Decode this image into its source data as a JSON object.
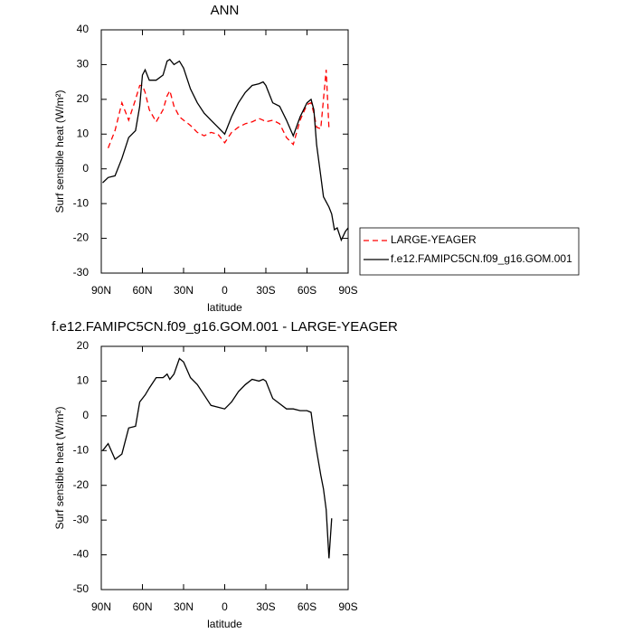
{
  "chart_data": [
    {
      "type": "line",
      "title": "ANN",
      "x_label": "latitude",
      "y_label": "Surf sensible heat (W/m²)",
      "xlim": [
        90,
        -90
      ],
      "xticks": [
        {
          "value": 90,
          "label": "90N"
        },
        {
          "value": 60,
          "label": "60N"
        },
        {
          "value": 30,
          "label": "30N"
        },
        0,
        {
          "value": -30,
          "label": "30S"
        },
        {
          "value": -60,
          "label": "60S"
        },
        {
          "value": -90,
          "label": "90S"
        }
      ],
      "ylim": [
        -30,
        40
      ],
      "yticks": [
        -30,
        -20,
        -10,
        0,
        10,
        20,
        30,
        40
      ],
      "legend": "right",
      "x": [
        89,
        85,
        80,
        75,
        70,
        65,
        62,
        60,
        58,
        55,
        50,
        45,
        42,
        40,
        37,
        33,
        30,
        25,
        20,
        15,
        10,
        5,
        0,
        -5,
        -10,
        -15,
        -20,
        -25,
        -28,
        -30,
        -35,
        -40,
        -45,
        -50,
        -55,
        -60,
        -63,
        -65,
        -67,
        -70,
        -72,
        -74,
        -76,
        -78,
        -80,
        -82,
        -85,
        -88,
        -90
      ],
      "series": [
        {
          "name": "LARGE-YEAGER",
          "color": "#ff0000",
          "line_style": "dashed",
          "values": [
            null,
            6,
            11,
            19,
            14,
            20,
            24,
            24,
            22,
            17,
            13.5,
            17,
            21,
            22.5,
            18,
            15,
            14,
            12.5,
            10.5,
            9.5,
            10.5,
            10,
            7.5,
            10.5,
            12,
            13,
            13.5,
            14.5,
            14,
            13.5,
            14,
            13,
            9,
            7,
            14,
            18.5,
            19,
            16,
            12,
            11.5,
            20,
            28.5,
            11.5,
            null,
            null,
            null,
            null,
            null,
            null
          ]
        },
        {
          "name": "f.e12.FAMIPC5CN.f09_g16.GOM.001",
          "color": "#000000",
          "line_style": "solid",
          "values": [
            -4,
            -2.5,
            -2,
            3,
            9,
            11,
            18,
            27,
            28.5,
            25.5,
            25.5,
            27,
            31,
            31.5,
            30,
            31,
            29,
            23,
            19,
            16,
            14,
            12,
            10,
            15,
            19,
            22,
            24,
            24.5,
            25,
            24,
            19,
            18,
            14,
            9.5,
            15,
            19,
            20,
            17,
            7,
            -2,
            -8,
            -9.5,
            -11,
            -13,
            -17.5,
            -17,
            -20.5,
            -18,
            -17
          ]
        }
      ]
    },
    {
      "type": "line",
      "title": "f.e12.FAMIPC5CN.f09_g16.GOM.001 - LARGE-YEAGER",
      "x_label": "latitude",
      "y_label": "Surf sensible heat (W/m²)",
      "xlim": [
        90,
        -90
      ],
      "xticks": [
        {
          "value": 90,
          "label": "90N"
        },
        {
          "value": 60,
          "label": "60N"
        },
        {
          "value": 30,
          "label": "30N"
        },
        0,
        {
          "value": -30,
          "label": "30S"
        },
        {
          "value": -60,
          "label": "60S"
        },
        {
          "value": -90,
          "label": "90S"
        }
      ],
      "ylim": [
        -50,
        20
      ],
      "yticks": [
        -50,
        -40,
        -30,
        -20,
        -10,
        0,
        10,
        20
      ],
      "x": [
        89,
        85,
        80,
        75,
        70,
        65,
        62,
        60,
        58,
        55,
        50,
        45,
        42,
        40,
        37,
        33,
        30,
        25,
        20,
        15,
        10,
        5,
        0,
        -5,
        -10,
        -15,
        -20,
        -25,
        -28,
        -30,
        -35,
        -40,
        -45,
        -50,
        -55,
        -60,
        -63,
        -65,
        -67,
        -70,
        -72,
        -74,
        -76,
        -78,
        -80,
        -82,
        -85,
        -88,
        -90
      ],
      "series": [
        {
          "color": "#000000",
          "line_style": "solid",
          "values": [
            -10,
            -8,
            -12.5,
            -11,
            -3.5,
            -3,
            4,
            5,
            6,
            8,
            11,
            11,
            12,
            10.5,
            12,
            16.5,
            15.5,
            11,
            9,
            6,
            3,
            2.5,
            2,
            4,
            7,
            9,
            10.5,
            10,
            10.5,
            10,
            5,
            3.5,
            2,
            2,
            1.5,
            1.5,
            1,
            -5,
            -10,
            -17,
            -21,
            -27,
            -41,
            -29.5,
            null,
            null,
            null,
            null,
            null
          ]
        }
      ]
    }
  ]
}
